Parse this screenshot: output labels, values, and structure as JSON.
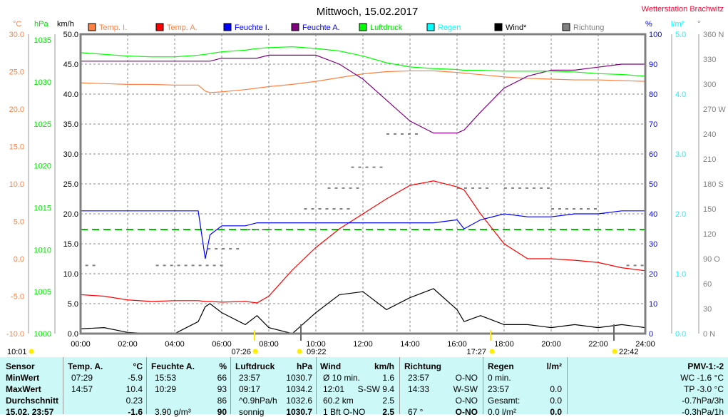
{
  "title": "Mittwoch, 15.02.2017",
  "station": "Wetterstation Brachwitz",
  "axes": {
    "c": "°C",
    "hpa": "hPa",
    "kmh": "km/h",
    "pct": "%",
    "lm2": "l/m²",
    "deg": "°"
  },
  "chart_data": {
    "type": "line",
    "title": "Mittwoch, 15.02.2017",
    "x_ticks": [
      "00:00",
      "02:00",
      "04:00",
      "06:00",
      "08:00",
      "10:00",
      "12:00",
      "14:00",
      "16:00",
      "18:00",
      "20:00",
      "22:00",
      "24:00"
    ],
    "axes": {
      "celsius": {
        "range": [
          -10,
          30
        ],
        "ticks": [
          "30.0",
          "25.0",
          "20.0",
          "15.0",
          "10.0",
          "5.0",
          "0.0",
          "-5.0",
          "-10.0"
        ]
      },
      "hpa": {
        "range": [
          1000,
          1035.7
        ],
        "ticks": [
          "1035",
          "1030",
          "1025",
          "1020",
          "1015",
          "1010",
          "1005",
          "1000"
        ]
      },
      "kmh": {
        "range": [
          0,
          50
        ],
        "ticks": [
          "50.0",
          "45.0",
          "40.0",
          "35.0",
          "30.0",
          "25.0",
          "20.0",
          "15.0",
          "10.0",
          "5.0",
          "0.0"
        ]
      },
      "percent": {
        "range": [
          0,
          100
        ],
        "ticks": [
          "100",
          "90",
          "80",
          "70",
          "60",
          "50",
          "40",
          "30",
          "20",
          "10",
          "0"
        ]
      },
      "rain": {
        "range": [
          0,
          5
        ],
        "ticks": [
          "5.0",
          "4.0",
          "3.0",
          "2.0",
          "1.0",
          "0.0"
        ]
      },
      "direction": {
        "range": [
          0,
          360
        ],
        "ticks": [
          "360 N",
          "330",
          "300",
          "270 W",
          "240",
          "210",
          "180 S",
          "150",
          "120",
          "90 O",
          "60",
          "30",
          "0 N"
        ]
      }
    },
    "legend": [
      {
        "name": "Temp. I.",
        "color": "#ff8040",
        "text_color": "#ff8040"
      },
      {
        "name": "Temp. A.",
        "color": "#ff0000",
        "text_color": "#ff8040"
      },
      {
        "name": "Feuchte I.",
        "color": "#0000ff",
        "text_color": "#0000ff"
      },
      {
        "name": "Feuchte A.",
        "color": "#800080",
        "text_color": "#0000ff"
      },
      {
        "name": "Luftdruck",
        "color": "#00ff00",
        "text_color": "#00dd00"
      },
      {
        "name": "Regen",
        "color": "#00ffff",
        "text_color": "#00ffff"
      },
      {
        "name": "Wind*",
        "color": "#000000",
        "text_color": "#000000"
      },
      {
        "name": "Richtung",
        "color": "#808080",
        "text_color": "#808080"
      }
    ],
    "x_hours": [
      0,
      1,
      2,
      3,
      4,
      5,
      5.3,
      5.5,
      6,
      7,
      7.5,
      8,
      9,
      10,
      11,
      12,
      13,
      14,
      15,
      16,
      16.3,
      17,
      18,
      19,
      20,
      21,
      22,
      23,
      24
    ],
    "series": [
      {
        "name": "Temp. I.",
        "axis": "celsius",
        "color": "#ff8040",
        "values": [
          23.5,
          23.4,
          23.3,
          23.3,
          23.2,
          23.2,
          22.4,
          22.2,
          22.3,
          22.6,
          22.8,
          23.0,
          23.3,
          23.7,
          24.2,
          24.7,
          25.0,
          25.1,
          25.1,
          24.9,
          24.8,
          24.6,
          24.3,
          24.1,
          24.0,
          23.9,
          23.9,
          23.8,
          23.7
        ]
      },
      {
        "name": "Temp. A.",
        "axis": "celsius",
        "color": "#ff0000",
        "values": [
          -4.8,
          -5.0,
          -5.5,
          -5.7,
          -5.6,
          -5.6,
          -5.7,
          -5.7,
          -5.8,
          -5.7,
          -5.9,
          -5.0,
          -1.5,
          1.5,
          4.0,
          6.0,
          8.0,
          9.8,
          10.4,
          9.6,
          9.2,
          6.0,
          2.0,
          0.0,
          0.0,
          -0.2,
          -0.5,
          -1.2,
          -1.6
        ]
      },
      {
        "name": "Feuchte I.",
        "axis": "percent",
        "color": "#0000ff",
        "values": [
          41,
          41,
          41,
          41,
          41,
          41,
          25,
          33,
          36,
          36,
          37,
          37,
          37,
          37,
          37,
          37,
          37,
          37,
          37,
          38,
          35,
          38,
          40,
          39,
          39,
          40,
          40,
          41,
          41
        ]
      },
      {
        "name": "Feuchte A.",
        "axis": "percent",
        "color": "#800080",
        "values": [
          91,
          91,
          91,
          91,
          91,
          91,
          91,
          91,
          92,
          92,
          92,
          93,
          93,
          93,
          90,
          85,
          78,
          71,
          67,
          67,
          68,
          74,
          82,
          86,
          88,
          88,
          89,
          90,
          90
        ]
      },
      {
        "name": "Luftdruck",
        "axis": "hpa",
        "color": "#00ff00",
        "values": [
          1033.5,
          1033.3,
          1033.1,
          1033.0,
          1033.0,
          1033.2,
          1033.3,
          1033.4,
          1033.6,
          1033.8,
          1034.0,
          1034.1,
          1034.2,
          1034.0,
          1033.7,
          1033.1,
          1032.3,
          1031.8,
          1031.6,
          1031.5,
          1031.4,
          1031.4,
          1031.3,
          1031.3,
          1031.3,
          1031.2,
          1031.0,
          1030.9,
          1030.7
        ]
      },
      {
        "name": "Wind*",
        "axis": "kmh",
        "color": "#000000",
        "values": [
          0.8,
          1.0,
          0.2,
          0.0,
          0.0,
          2.0,
          4.5,
          5.0,
          3.5,
          1.5,
          3.0,
          1.0,
          0.0,
          3.5,
          6.5,
          7.0,
          4.0,
          6.0,
          7.5,
          4.0,
          2.0,
          3.0,
          1.5,
          1.5,
          1.0,
          1.5,
          1.0,
          1.5,
          1.0
        ]
      }
    ],
    "dew_line": {
      "axis": "celsius",
      "value": 3.9,
      "color": "#00c000"
    },
    "sun_events": {
      "rise": "07:26",
      "set": "17:27",
      "moonrise": "22:42",
      "moonset": "09:22",
      "moon_other": "10:01"
    }
  },
  "table": {
    "headers": [
      "Sensor",
      "Temp. A.",
      "°C",
      "Feuchte A.",
      "%",
      "Luftdruck",
      "hPa",
      "Wind",
      "km/h",
      "Richtung",
      "Regen",
      "l/m²",
      "PMV-1:-2"
    ],
    "rows": [
      {
        "label": "MinWert",
        "t_time": "07:29",
        "t_val": "-5.9",
        "h_time": "15:53",
        "h_val": "66",
        "p_time": "23:57",
        "p_val": "1030.7",
        "w_label": "Ø 10 min.",
        "w_val": "1.6",
        "r_time": "23:57",
        "r_val": "O-NO",
        "rain_label": "0 min.",
        "rain_val": "",
        "pmv": "WC -1.6 °C"
      },
      {
        "label": "MaxWert",
        "t_time": "14:57",
        "t_val": "10.4",
        "h_time": "10:29",
        "h_val": "93",
        "p_time": "09:17",
        "p_val": "1034.2",
        "w_label": "12:01",
        "w_val": "S-SW 9.4",
        "r_time": "14:33",
        "r_val": "W-SW",
        "rain_label": "23:57",
        "rain_val": "0.0",
        "pmv": "TP -3.0 °C"
      },
      {
        "label": "Durchschnitt",
        "t_time": "",
        "t_val": "0.23",
        "h_time": "",
        "h_val": "86",
        "p_time": "^0.9hPa/h",
        "p_val": "1032.6",
        "w_label": "60.2 km",
        "w_val": "2.5",
        "r_time": "",
        "r_val": "O-NO",
        "rain_label": "Gesamt:",
        "rain_val": "0.0",
        "pmv": "-0.7hPa/3h"
      },
      {
        "label": "15.02. 23:57",
        "t_time": "",
        "t_val": "-1.6",
        "h_time": "3.90 g/m³",
        "h_val": "90",
        "p_time": "sonnig",
        "p_val": "1030.7",
        "w_label": "1 Bft O-NO",
        "w_val": "2.5",
        "r_time": "67 °",
        "r_val": "O-NO",
        "rain_label": "0.0 l/m²",
        "rain_val": "0.0",
        "pmv": "-0.3hPa/1h"
      }
    ]
  }
}
